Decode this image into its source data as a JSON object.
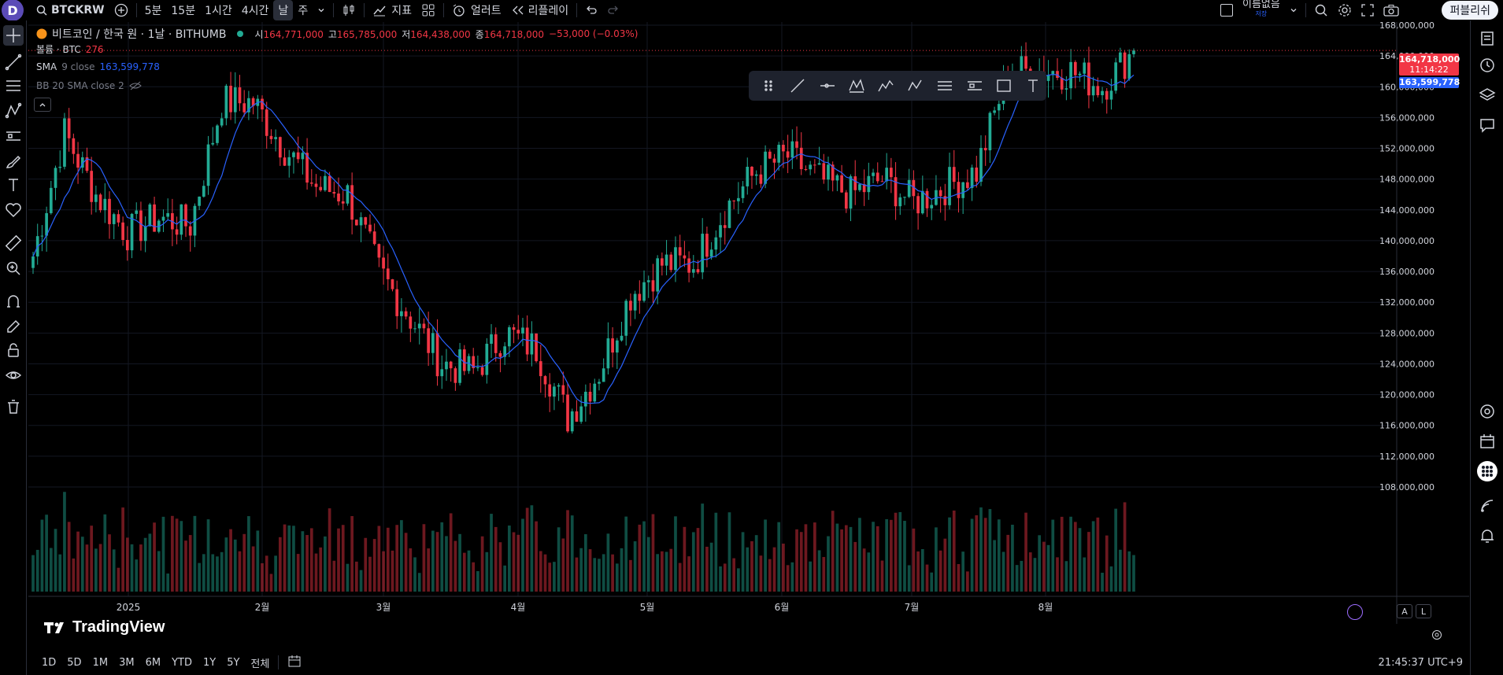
{
  "topbar": {
    "avatar": "D",
    "symbol": "BTCKRW",
    "intervals": [
      "5분",
      "15분",
      "1시간",
      "4시간",
      "날",
      "주"
    ],
    "active_interval": "날",
    "indicators_label": "지표",
    "alert_label": "얼러트",
    "replay_label": "리플레이",
    "layout_name": "이름없음",
    "layout_sub": "저장",
    "publish_label": "퍼블리쉬"
  },
  "legend": {
    "title": "비트코인 / 한국 원 · 1날 · BITHUMB",
    "o_label": "시",
    "o_value": "164,771,000",
    "h_label": "고",
    "h_value": "165,785,000",
    "l_label": "저",
    "l_value": "164,438,000",
    "c_label": "종",
    "c_value": "164,718,000",
    "change": "−53,000 (−0.03%)",
    "volume_label": "볼륨 · BTC",
    "volume_value": "276",
    "sma_label": "SMA",
    "sma_params": "9 close",
    "sma_value": "163,599,778",
    "bb_label": "BB 20 SMA close 2"
  },
  "price_axis": {
    "labels": [
      "168,000,000",
      "164,000,000",
      "160,000,000",
      "156,000,000",
      "152,000,000",
      "148,000,000",
      "144,000,000",
      "140,000,000",
      "136,000,000",
      "132,000,000",
      "128,000,000",
      "124,000,000",
      "120,000,000",
      "116,000,000",
      "112,000,000",
      "108,000,000"
    ],
    "last_price_tag": "164,718,000",
    "countdown_tag": "11:14:22",
    "sma_tag": "163,599,778"
  },
  "time_axis": {
    "labels": [
      "2025",
      "2월",
      "3월",
      "4월",
      "5월",
      "6월",
      "7월",
      "8월"
    ]
  },
  "bottombar": {
    "ranges": [
      "1D",
      "5D",
      "1M",
      "3M",
      "6M",
      "YTD",
      "1Y",
      "5Y",
      "전체"
    ],
    "clock": "21:45:37 UTC+9"
  },
  "watermark": "TradingView",
  "scale_buttons": [
    "A",
    "L"
  ],
  "colors": {
    "up": "#22ab94",
    "down": "#f23645",
    "sma": "#2962ff",
    "background": "#000000",
    "grid": "#131722"
  },
  "chart_data": {
    "type": "candlestick",
    "symbol": "BTCKRW",
    "exchange": "BITHUMB",
    "interval": "1D",
    "ylim": [
      106000000,
      169000000
    ],
    "approx_close_path": [
      {
        "x": "2024-12-10",
        "close": 138000000
      },
      {
        "x": "2024-12-17",
        "close": 154000000
      },
      {
        "x": "2024-12-24",
        "close": 146000000
      },
      {
        "x": "2024-12-31",
        "close": 141000000
      },
      {
        "x": "2025-01-07",
        "close": 143000000
      },
      {
        "x": "2025-01-14",
        "close": 142000000
      },
      {
        "x": "2025-01-21",
        "close": 158000000
      },
      {
        "x": "2025-01-28",
        "close": 158000000
      },
      {
        "x": "2025-02-04",
        "close": 152000000
      },
      {
        "x": "2025-02-11",
        "close": 147000000
      },
      {
        "x": "2025-02-18",
        "close": 146000000
      },
      {
        "x": "2025-02-25",
        "close": 136000000
      },
      {
        "x": "2025-03-04",
        "close": 130000000
      },
      {
        "x": "2025-03-11",
        "close": 124000000
      },
      {
        "x": "2025-03-18",
        "close": 123000000
      },
      {
        "x": "2025-03-25",
        "close": 128000000
      },
      {
        "x": "2025-04-01",
        "close": 126000000
      },
      {
        "x": "2025-04-08",
        "close": 117000000
      },
      {
        "x": "2025-04-15",
        "close": 123000000
      },
      {
        "x": "2025-04-22",
        "close": 133000000
      },
      {
        "x": "2025-04-29",
        "close": 137000000
      },
      {
        "x": "2025-05-06",
        "close": 137000000
      },
      {
        "x": "2025-05-13",
        "close": 144000000
      },
      {
        "x": "2025-05-20",
        "close": 149000000
      },
      {
        "x": "2025-05-27",
        "close": 151000000
      },
      {
        "x": "2025-06-03",
        "close": 148000000
      },
      {
        "x": "2025-06-10",
        "close": 146000000
      },
      {
        "x": "2025-06-17",
        "close": 148000000
      },
      {
        "x": "2025-06-24",
        "close": 145000000
      },
      {
        "x": "2025-07-01",
        "close": 147000000
      },
      {
        "x": "2025-07-08",
        "close": 149000000
      },
      {
        "x": "2025-07-15",
        "close": 162000000
      },
      {
        "x": "2025-07-22",
        "close": 162000000
      },
      {
        "x": "2025-07-29",
        "close": 162000000
      },
      {
        "x": "2025-08-05",
        "close": 160000000
      },
      {
        "x": "2025-08-12",
        "close": 164718000
      }
    ],
    "last": {
      "open": 164771000,
      "high": 165785000,
      "low": 164438000,
      "close": 164718000,
      "volume": 276
    },
    "sma9_last": 163599778
  }
}
